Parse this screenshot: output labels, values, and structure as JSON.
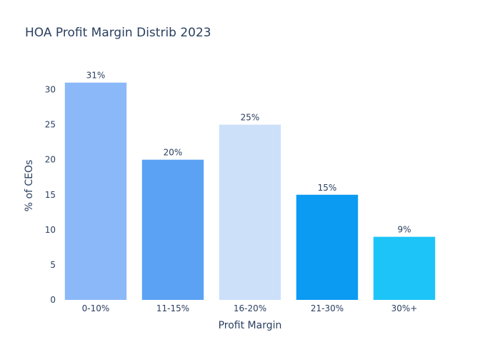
{
  "chart_data": {
    "type": "bar",
    "title": "HOA Profit Margin Distrib 2023",
    "xlabel": "Profit Margin",
    "ylabel": "% of CEOs",
    "categories": [
      "0-10%",
      "11-15%",
      "16-20%",
      "21-30%",
      "30%+"
    ],
    "values": [
      31,
      20,
      25,
      15,
      9
    ],
    "data_labels": [
      "31%",
      "20%",
      "25%",
      "15%",
      "9%"
    ],
    "colors": [
      "#8bb8f8",
      "#5ba2f4",
      "#cce0fa",
      "#0b9bf2",
      "#1cc4f8"
    ],
    "ylim": [
      0,
      32.6
    ],
    "yticks": [
      0,
      5,
      10,
      15,
      20,
      25,
      30
    ],
    "grid": false,
    "legend": "none"
  }
}
